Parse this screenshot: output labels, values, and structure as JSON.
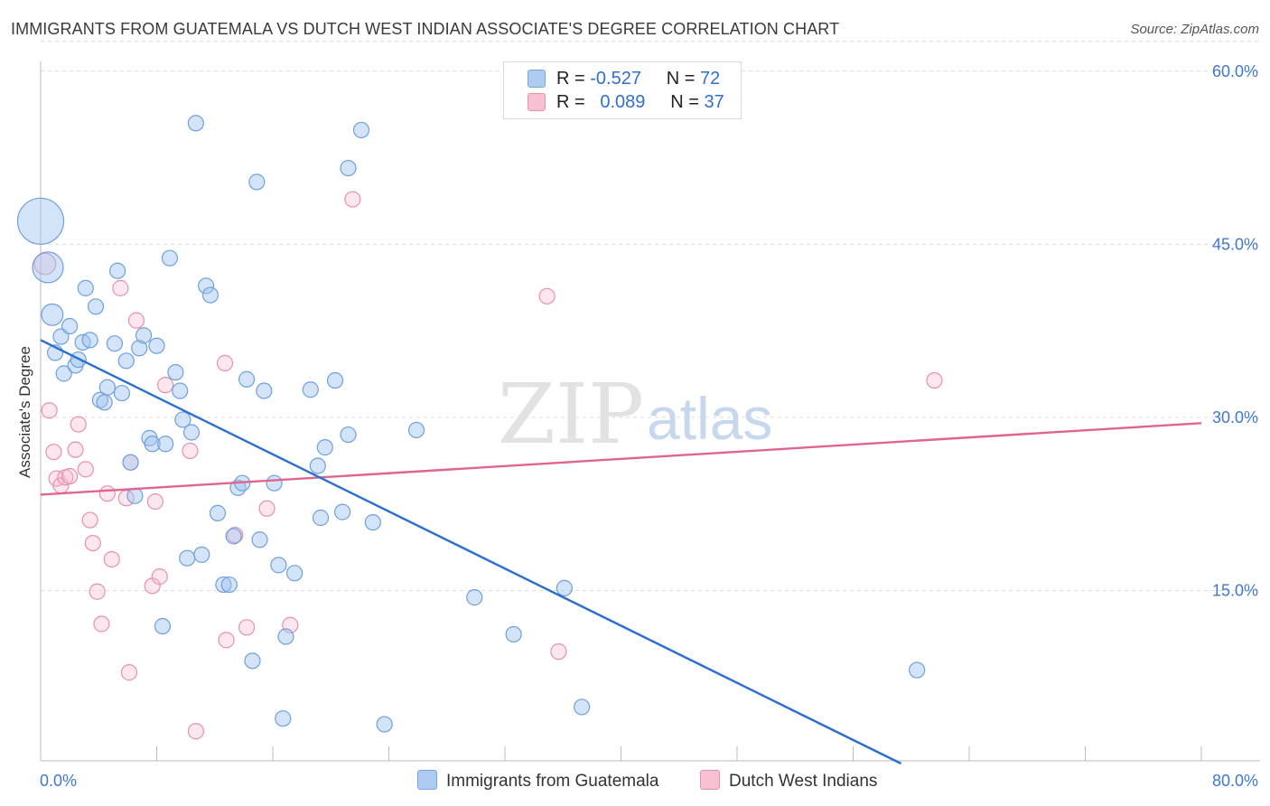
{
  "title": "IMMIGRANTS FROM GUATEMALA VS DUTCH WEST INDIAN ASSOCIATE'S DEGREE CORRELATION CHART",
  "source": "Source: ZipAtlas.com",
  "watermark": {
    "zip": "ZIP",
    "atlas": "atlas"
  },
  "legend": {
    "rows": [
      {
        "r_label": "R =",
        "r_value": "-0.527",
        "n_label": "N =",
        "n_value": "72",
        "color": "#aecbf2",
        "border": "#7aa6e0"
      },
      {
        "r_label": "R =",
        "r_value": "0.089",
        "n_label": "N =",
        "n_value": "37",
        "color": "#f7c1d2",
        "border": "#e990ad"
      }
    ]
  },
  "bottom_legend": {
    "series1": "Immigrants from Guatemala",
    "series2": "Dutch West Indians"
  },
  "colors": {
    "blue_fill": "rgba(160,195,240,0.45)",
    "blue_stroke": "#6f9fdc",
    "blue_line": "#2a6fd0",
    "pink_fill": "rgba(246,185,205,0.35)",
    "pink_stroke": "#e88fae",
    "pink_line": "#e0648f",
    "tick_label": "#3f78cc"
  },
  "chart_data": {
    "type": "scatter",
    "title": "IMMIGRANTS FROM GUATEMALA VS DUTCH WEST INDIAN ASSOCIATE'S DEGREE CORRELATION CHART",
    "xlabel": "",
    "ylabel": "Associate's Degree",
    "xlim": [
      0,
      80
    ],
    "ylim": [
      0,
      63
    ],
    "x_tick_labels": [
      "0.0%",
      "80.0%"
    ],
    "y_ticks": [
      15,
      30,
      45,
      60
    ],
    "y_tick_labels": [
      "15.0%",
      "30.0%",
      "45.0%",
      "60.0%"
    ],
    "grid": "horizontal dashed",
    "legend_position": "top-center",
    "series": [
      {
        "name": "Immigrants from Guatemala",
        "r": -0.527,
        "n": 72,
        "trend": {
          "x": [
            0,
            59.3
          ],
          "y": [
            36.7,
            0
          ]
        },
        "points": [
          {
            "x": 0.0,
            "y": 47.0,
            "s": 3
          },
          {
            "x": 0.5,
            "y": 43.0,
            "s": 2
          },
          {
            "x": 0.8,
            "y": 38.9,
            "s": 1.4
          },
          {
            "x": 1.0,
            "y": 35.6
          },
          {
            "x": 1.4,
            "y": 37.0
          },
          {
            "x": 1.6,
            "y": 33.8
          },
          {
            "x": 2.0,
            "y": 37.9
          },
          {
            "x": 2.4,
            "y": 34.5
          },
          {
            "x": 2.6,
            "y": 35.0
          },
          {
            "x": 2.9,
            "y": 36.5
          },
          {
            "x": 3.1,
            "y": 41.2
          },
          {
            "x": 3.4,
            "y": 36.7
          },
          {
            "x": 3.8,
            "y": 39.6
          },
          {
            "x": 4.1,
            "y": 31.5
          },
          {
            "x": 4.4,
            "y": 31.3
          },
          {
            "x": 4.6,
            "y": 32.6
          },
          {
            "x": 5.1,
            "y": 36.4
          },
          {
            "x": 5.3,
            "y": 42.7
          },
          {
            "x": 5.6,
            "y": 32.1
          },
          {
            "x": 5.9,
            "y": 34.9
          },
          {
            "x": 6.2,
            "y": 26.1
          },
          {
            "x": 6.5,
            "y": 23.2
          },
          {
            "x": 6.8,
            "y": 36.0
          },
          {
            "x": 7.1,
            "y": 37.1
          },
          {
            "x": 7.5,
            "y": 28.2
          },
          {
            "x": 7.7,
            "y": 27.7
          },
          {
            "x": 8.0,
            "y": 36.2
          },
          {
            "x": 8.4,
            "y": 11.9
          },
          {
            "x": 8.6,
            "y": 27.7
          },
          {
            "x": 8.9,
            "y": 43.8
          },
          {
            "x": 9.3,
            "y": 33.9
          },
          {
            "x": 9.6,
            "y": 32.3
          },
          {
            "x": 9.8,
            "y": 29.8
          },
          {
            "x": 10.1,
            "y": 17.8
          },
          {
            "x": 10.4,
            "y": 28.7
          },
          {
            "x": 10.7,
            "y": 55.5
          },
          {
            "x": 11.1,
            "y": 18.1
          },
          {
            "x": 11.4,
            "y": 41.4
          },
          {
            "x": 11.7,
            "y": 40.6
          },
          {
            "x": 12.2,
            "y": 21.7
          },
          {
            "x": 12.6,
            "y": 15.5
          },
          {
            "x": 13.0,
            "y": 15.5
          },
          {
            "x": 13.3,
            "y": 19.7
          },
          {
            "x": 13.6,
            "y": 23.9
          },
          {
            "x": 13.9,
            "y": 24.3
          },
          {
            "x": 14.2,
            "y": 33.3
          },
          {
            "x": 14.6,
            "y": 8.9
          },
          {
            "x": 14.9,
            "y": 50.4
          },
          {
            "x": 15.1,
            "y": 19.4
          },
          {
            "x": 15.4,
            "y": 32.3
          },
          {
            "x": 16.1,
            "y": 24.3
          },
          {
            "x": 16.4,
            "y": 17.2
          },
          {
            "x": 16.7,
            "y": 3.9
          },
          {
            "x": 16.9,
            "y": 11.0
          },
          {
            "x": 17.5,
            "y": 16.5
          },
          {
            "x": 18.6,
            "y": 32.4
          },
          {
            "x": 19.1,
            "y": 25.8
          },
          {
            "x": 19.3,
            "y": 21.3
          },
          {
            "x": 19.6,
            "y": 27.4
          },
          {
            "x": 20.3,
            "y": 33.2
          },
          {
            "x": 20.8,
            "y": 21.8
          },
          {
            "x": 21.2,
            "y": 28.5
          },
          {
            "x": 21.2,
            "y": 51.6
          },
          {
            "x": 22.1,
            "y": 54.9
          },
          {
            "x": 22.9,
            "y": 20.9
          },
          {
            "x": 23.7,
            "y": 3.4
          },
          {
            "x": 25.9,
            "y": 28.9
          },
          {
            "x": 29.9,
            "y": 14.4
          },
          {
            "x": 32.6,
            "y": 11.2
          },
          {
            "x": 36.1,
            "y": 15.2
          },
          {
            "x": 37.3,
            "y": 4.9
          },
          {
            "x": 60.4,
            "y": 8.1
          }
        ]
      },
      {
        "name": "Dutch West Indians",
        "r": 0.089,
        "n": 37,
        "trend": {
          "x": [
            0,
            80
          ],
          "y": [
            23.3,
            29.5
          ]
        },
        "points": [
          {
            "x": 0.3,
            "y": 43.3,
            "s": 1.4
          },
          {
            "x": 0.6,
            "y": 30.6
          },
          {
            "x": 0.9,
            "y": 27.0
          },
          {
            "x": 1.1,
            "y": 24.7
          },
          {
            "x": 1.4,
            "y": 24.1
          },
          {
            "x": 1.7,
            "y": 24.8
          },
          {
            "x": 2.0,
            "y": 24.9
          },
          {
            "x": 2.4,
            "y": 27.2
          },
          {
            "x": 2.6,
            "y": 29.4
          },
          {
            "x": 3.1,
            "y": 25.5
          },
          {
            "x": 3.4,
            "y": 21.1
          },
          {
            "x": 3.6,
            "y": 19.1
          },
          {
            "x": 3.9,
            "y": 14.9
          },
          {
            "x": 4.2,
            "y": 12.1
          },
          {
            "x": 4.6,
            "y": 23.4
          },
          {
            "x": 4.9,
            "y": 17.7
          },
          {
            "x": 5.5,
            "y": 41.2
          },
          {
            "x": 5.9,
            "y": 23.0
          },
          {
            "x": 6.1,
            "y": 7.9
          },
          {
            "x": 6.2,
            "y": 26.1
          },
          {
            "x": 6.6,
            "y": 38.4
          },
          {
            "x": 7.7,
            "y": 15.4
          },
          {
            "x": 7.9,
            "y": 22.7
          },
          {
            "x": 8.2,
            "y": 16.2
          },
          {
            "x": 8.6,
            "y": 32.8
          },
          {
            "x": 10.3,
            "y": 27.1
          },
          {
            "x": 10.7,
            "y": 2.8
          },
          {
            "x": 12.7,
            "y": 34.7
          },
          {
            "x": 12.8,
            "y": 10.7
          },
          {
            "x": 13.4,
            "y": 19.8
          },
          {
            "x": 14.2,
            "y": 11.8
          },
          {
            "x": 15.6,
            "y": 22.1
          },
          {
            "x": 17.2,
            "y": 12.0
          },
          {
            "x": 21.5,
            "y": 48.9
          },
          {
            "x": 34.9,
            "y": 40.5
          },
          {
            "x": 35.7,
            "y": 9.7
          },
          {
            "x": 61.6,
            "y": 33.2
          }
        ]
      }
    ]
  }
}
